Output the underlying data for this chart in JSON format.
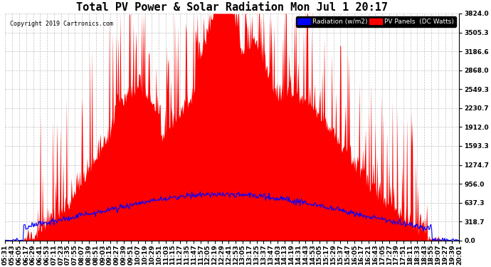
{
  "title": "Total PV Power & Solar Radiation Mon Jul 1 20:17",
  "copyright": "Copyright 2019 Cartronics.com",
  "legend_radiation": "Radiation (w/m2)",
  "legend_pv": "PV Panels  (DC Watts)",
  "ymax": 3824.0,
  "ymin": 0.0,
  "yticks": [
    0.0,
    318.7,
    637.3,
    956.0,
    1274.7,
    1593.3,
    1912.0,
    2230.7,
    2549.3,
    2868.0,
    3186.6,
    3505.3,
    3824.0
  ],
  "ytick_labels": [
    "0.0",
    "318.7",
    "637.3",
    "956.0",
    "1274.7",
    "1593.3",
    "1912.0",
    "2230.7",
    "2549.3",
    "2868.0",
    "3186.6",
    "3505.3",
    "3824.0"
  ],
  "bg_color": "#ffffff",
  "grid_color": "#aaaaaa",
  "red_color": "#ff0000",
  "blue_color": "#0000ff",
  "title_fontsize": 11,
  "tick_fontsize": 6.5,
  "time_labels": [
    "05:31",
    "05:43",
    "06:05",
    "06:17",
    "06:29",
    "06:41",
    "06:53",
    "07:11",
    "07:23",
    "07:35",
    "07:55",
    "08:07",
    "08:39",
    "08:51",
    "09:03",
    "09:15",
    "09:27",
    "09:39",
    "09:51",
    "10:07",
    "10:19",
    "10:29",
    "10:51",
    "11:03",
    "11:15",
    "11:27",
    "11:35",
    "11:47",
    "11:57",
    "12:05",
    "12:19",
    "12:29",
    "12:41",
    "12:53",
    "13:05",
    "13:17",
    "13:25",
    "13:37",
    "13:47",
    "14:03",
    "14:13",
    "14:19",
    "14:31",
    "14:43",
    "14:53",
    "15:05",
    "15:17",
    "15:29",
    "15:37",
    "15:47",
    "16:05",
    "16:17",
    "16:21",
    "16:43",
    "17:05",
    "17:27",
    "17:39",
    "17:51",
    "18:11",
    "18:33",
    "18:43",
    "18:55",
    "19:07",
    "19:27",
    "19:39",
    "20:01"
  ]
}
